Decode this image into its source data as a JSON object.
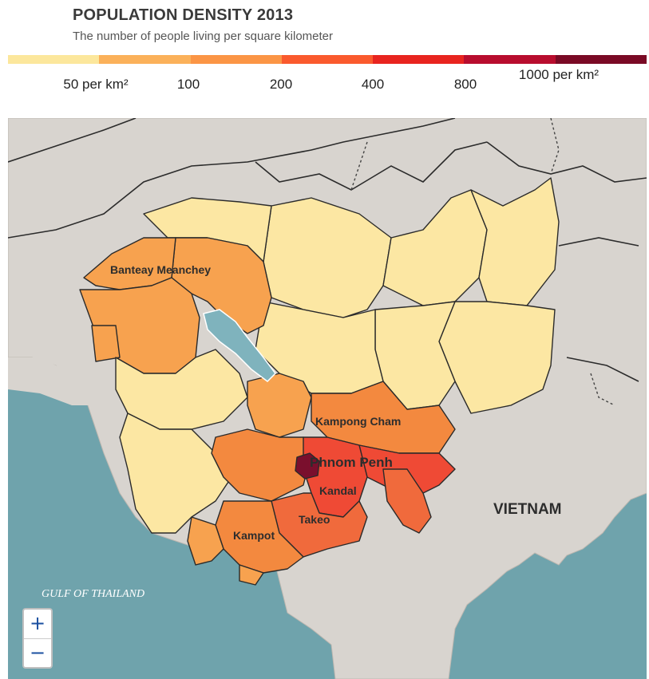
{
  "header": {
    "title": "POPULATION DENSITY 2013",
    "subtitle": "The number of people living per square kilometer"
  },
  "legend": {
    "colors": [
      "#fce79c",
      "#fbb15a",
      "#fb9545",
      "#fa5a2d",
      "#e8241f",
      "#b80d2e",
      "#7a0a25"
    ],
    "labels": [
      "50 per km²",
      "100",
      "200",
      "400",
      "800",
      "1000 per km²"
    ]
  },
  "map": {
    "sea_label": "GULF OF THAILAND",
    "country_label": "VIETNAM",
    "province_labels": {
      "banteay_meanchey": "Banteay Meanchey",
      "kampong_cham": "Kampong Cham",
      "phnom_penh": "Phnom Penh",
      "kandal": "Kandal",
      "takeo": "Takeo",
      "kampot": "Kampot"
    },
    "colors": {
      "sea": "#6fa3ac",
      "land": "#d8d4cf",
      "lake": "#7fb3bd",
      "low": "#fce7a3",
      "mid_low": "#f7a24f",
      "mid": "#f3893f",
      "high": "#f06a3c",
      "higher": "#ef4a35",
      "top": "#7a0f2d"
    }
  },
  "zoom": {
    "in_label": "+",
    "out_label": "−"
  }
}
